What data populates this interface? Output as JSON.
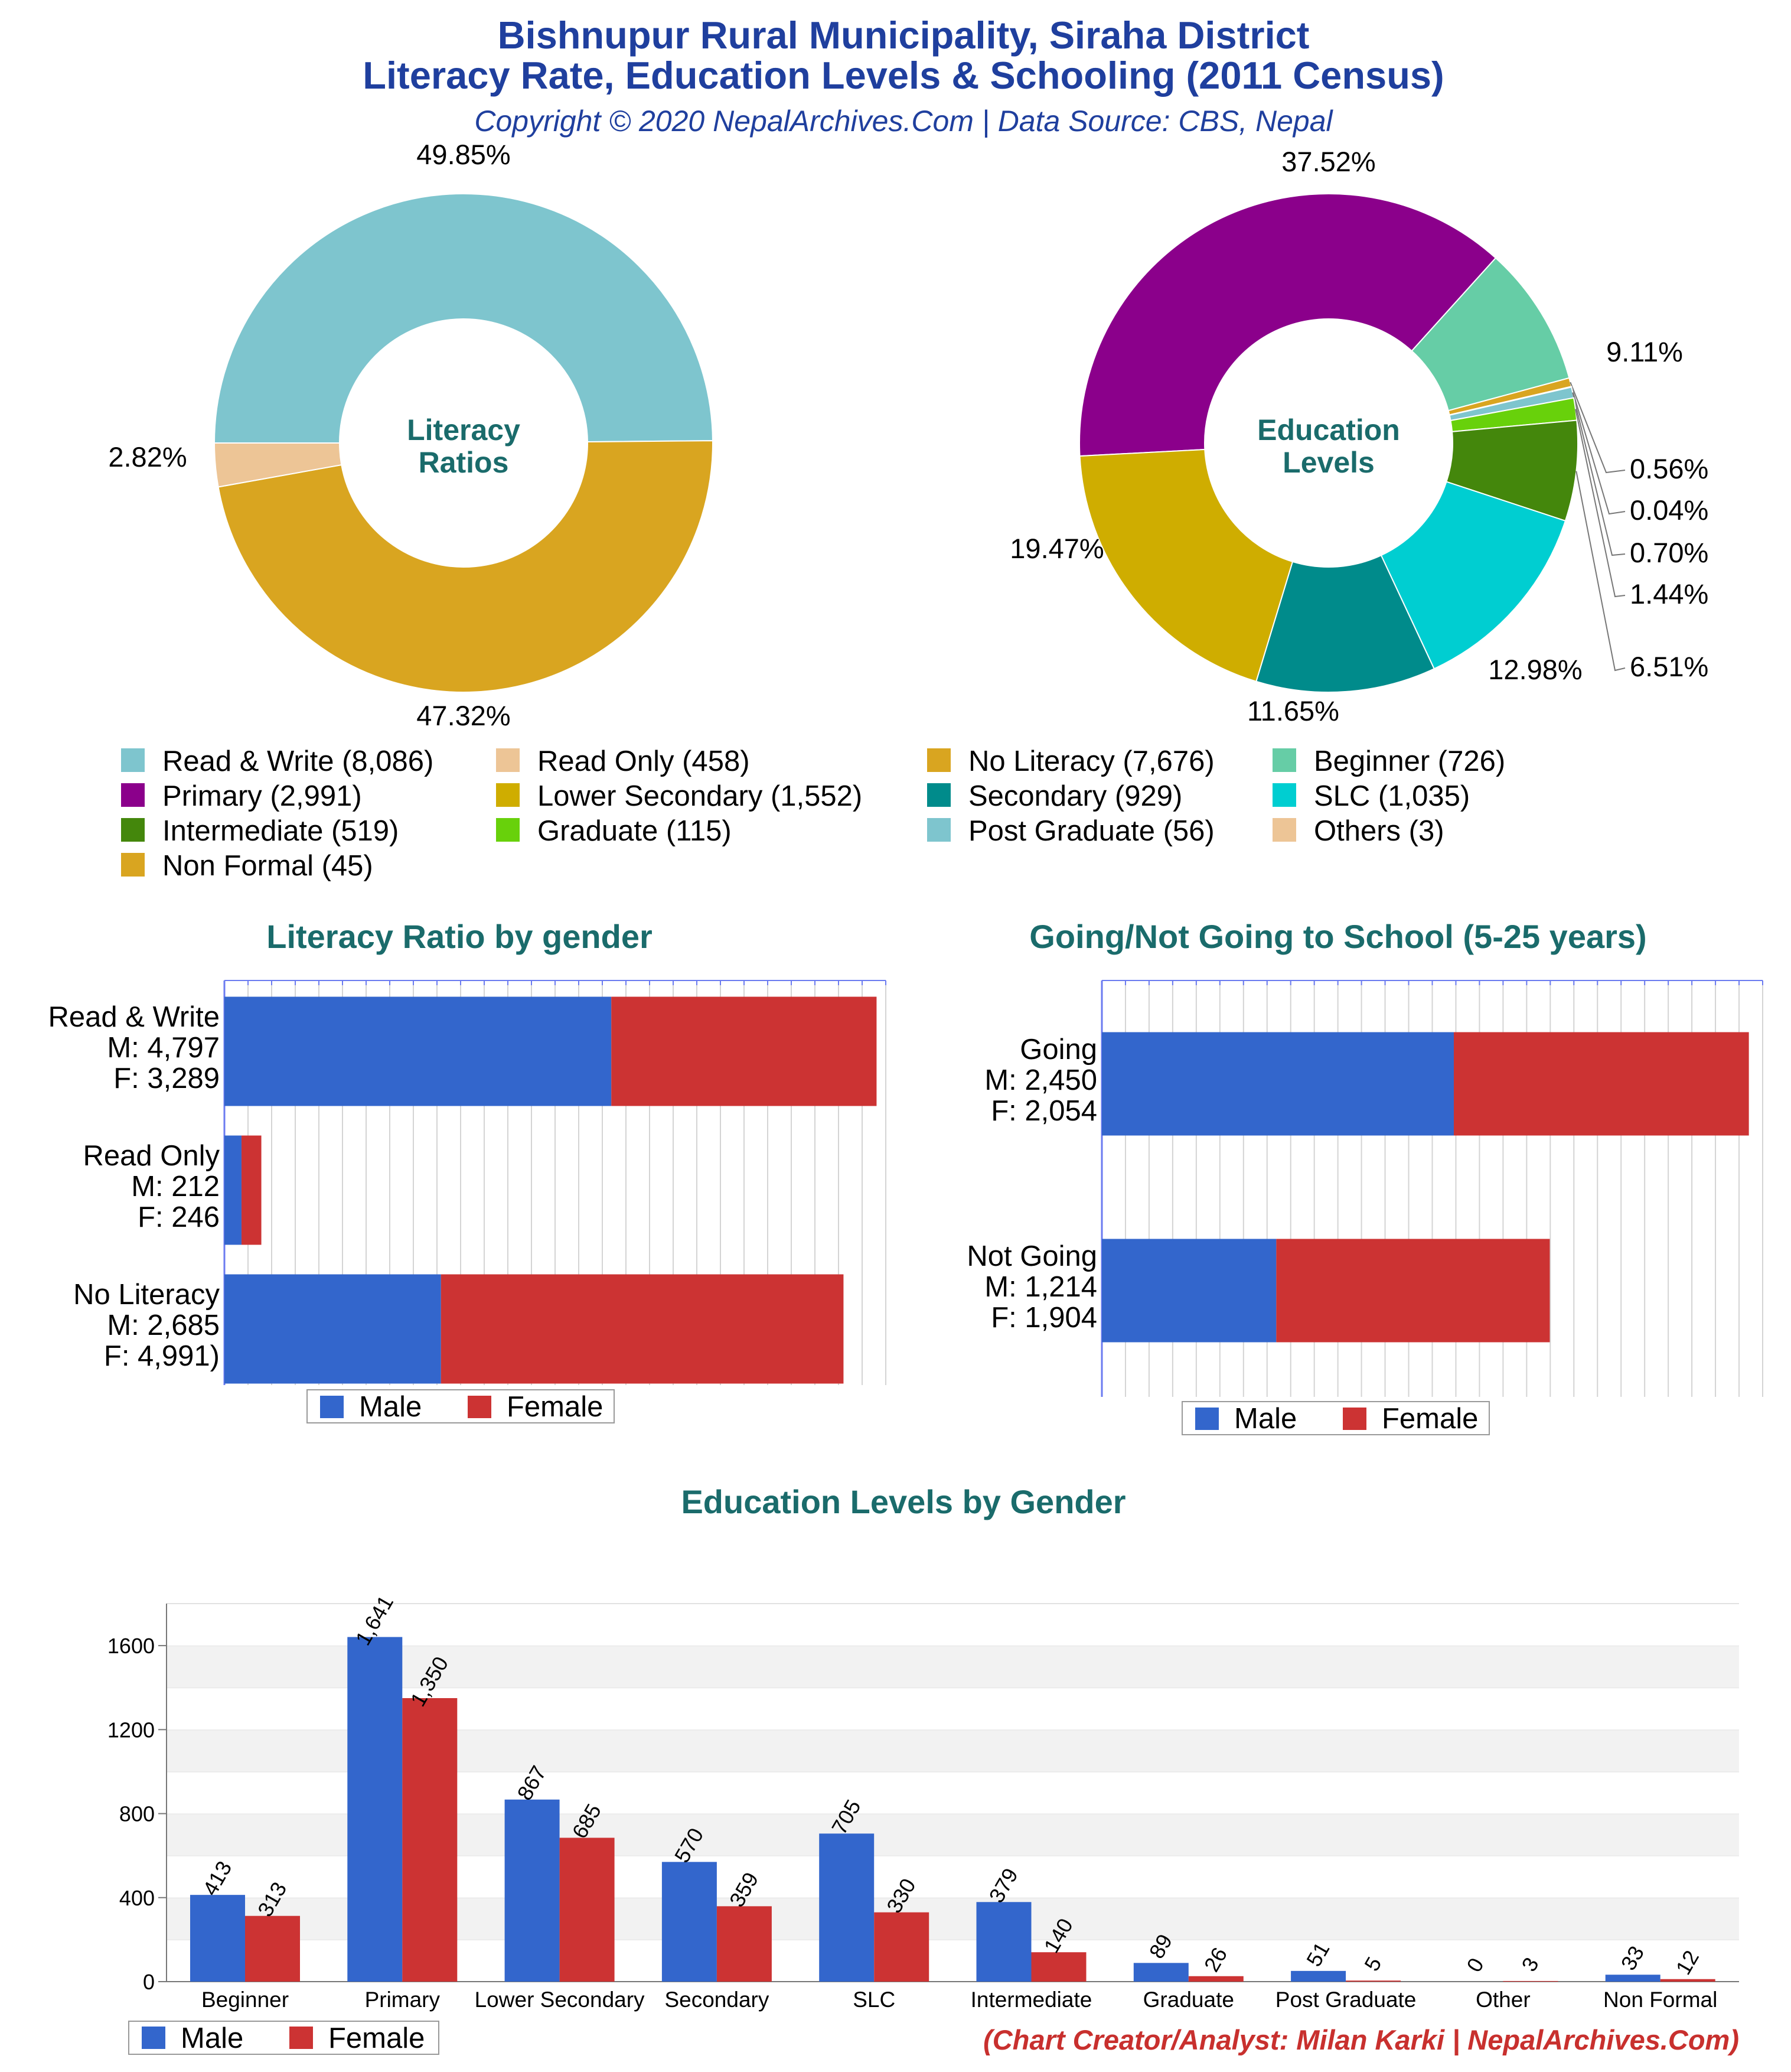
{
  "header": {
    "title_line1": "Bishnupur Rural Municipality, Siraha District",
    "title_line2": "Literacy Rate, Education Levels & Schooling (2011 Census)",
    "copyright": "Copyright © 2020 NepalArchives.Com | Data Source: CBS, Nepal"
  },
  "credit": "(Chart Creator/Analyst: Milan Karki | NepalArchives.Com)",
  "legend_labels": [
    "Read & Write (8,086)",
    "Read Only (458)",
    "No Literacy (7,676)",
    "Beginner (726)",
    "Primary (2,991)",
    "Lower Secondary (1,552)",
    "Secondary (929)",
    "SLC (1,035)",
    "Intermediate (519)",
    "Graduate (115)",
    "Post Graduate (56)",
    "Others (3)",
    "Non Formal (45)"
  ],
  "legend_colors": [
    "#7ec5ce",
    "#edc596",
    "#d9a520",
    "#66cda6",
    "#8b008b",
    "#cfad00",
    "#008b8b",
    "#00ced1",
    "#44870c",
    "#68d10b",
    "#7ec5ce",
    "#edc596",
    "#d9a520"
  ],
  "gender_legend": {
    "male": "Male",
    "female": "Female",
    "male_color": "#3366cc",
    "female_color": "#cc3333"
  },
  "chart_data": [
    {
      "type": "pie",
      "title": "Literacy Ratios",
      "center_lines": [
        "Literacy",
        "Ratios"
      ],
      "donut": true,
      "slices": [
        {
          "label": "Read & Write",
          "value": 8086,
          "percent": "49.85%",
          "color": "#7ec5ce"
        },
        {
          "label": "No Literacy",
          "value": 7676,
          "percent": "47.32%",
          "color": "#d9a520"
        },
        {
          "label": "Read Only",
          "value": 458,
          "percent": "2.82%",
          "color": "#edc596"
        }
      ]
    },
    {
      "type": "pie",
      "title": "Education Levels",
      "center_lines": [
        "Education",
        "Levels"
      ],
      "donut": true,
      "slices": [
        {
          "label": "Primary",
          "value": 2991,
          "percent": "37.52%",
          "color": "#8b008b"
        },
        {
          "label": "Beginner",
          "value": 726,
          "percent": "9.11%",
          "color": "#66cda6"
        },
        {
          "label": "Non Formal",
          "value": 45,
          "percent": "0.56%",
          "color": "#d9a520"
        },
        {
          "label": "Others",
          "value": 3,
          "percent": "0.04%",
          "color": "#edc596"
        },
        {
          "label": "Post Graduate",
          "value": 56,
          "percent": "0.70%",
          "color": "#7ec5ce"
        },
        {
          "label": "Graduate",
          "value": 115,
          "percent": "1.44%",
          "color": "#68d10b"
        },
        {
          "label": "Intermediate",
          "value": 519,
          "percent": "6.51%",
          "color": "#44870c"
        },
        {
          "label": "SLC",
          "value": 1035,
          "percent": "12.98%",
          "color": "#00ced1"
        },
        {
          "label": "Secondary",
          "value": 929,
          "percent": "11.65%",
          "color": "#008b8b"
        },
        {
          "label": "Lower Secondary",
          "value": 1552,
          "percent": "19.47%",
          "color": "#cfad00"
        }
      ]
    },
    {
      "type": "bar",
      "orientation": "horizontal",
      "stacked": true,
      "title": "Literacy Ratio by gender",
      "categories": [
        {
          "lines": [
            "Read & Write",
            "M: 4,797",
            "F: 3,289"
          ],
          "male": 4797,
          "female": 3289
        },
        {
          "lines": [
            "Read Only",
            "M: 212",
            "F: 246"
          ],
          "male": 212,
          "female": 246
        },
        {
          "lines": [
            "No Literacy",
            "M: 2,685",
            "F: 4,991)"
          ],
          "male": 2685,
          "female": 4991
        }
      ],
      "xlim": [
        0,
        8200
      ]
    },
    {
      "type": "bar",
      "orientation": "horizontal",
      "stacked": true,
      "title": "Going/Not Going to School (5-25 years)",
      "categories": [
        {
          "lines": [
            "Going",
            "M: 2,450",
            "F: 2,054"
          ],
          "male": 2450,
          "female": 2054
        },
        {
          "lines": [
            "Not Going",
            "M: 1,214",
            "F: 1,904"
          ],
          "male": 1214,
          "female": 1904
        }
      ],
      "xlim": [
        0,
        4600
      ]
    },
    {
      "type": "bar",
      "title": "Education Levels by Gender",
      "categories": [
        "Beginner",
        "Primary",
        "Lower Secondary",
        "Secondary",
        "SLC",
        "Intermediate",
        "Graduate",
        "Post Graduate",
        "Other",
        "Non Formal"
      ],
      "series": [
        {
          "name": "Male",
          "values": [
            413,
            1641,
            867,
            570,
            705,
            379,
            89,
            51,
            0,
            33
          ],
          "labels": [
            "413",
            "1,641",
            "867",
            "570",
            "705",
            "379",
            "89",
            "51",
            "0",
            "33"
          ]
        },
        {
          "name": "Female",
          "values": [
            313,
            1350,
            685,
            359,
            330,
            140,
            26,
            5,
            3,
            12
          ],
          "labels": [
            "313",
            "1,350",
            "685",
            "359",
            "330",
            "140",
            "26",
            "5",
            "3",
            "12"
          ]
        }
      ],
      "yticks": [
        "0",
        "400",
        "800",
        "1200",
        "1600"
      ],
      "ylim": [
        0,
        1800
      ]
    }
  ]
}
